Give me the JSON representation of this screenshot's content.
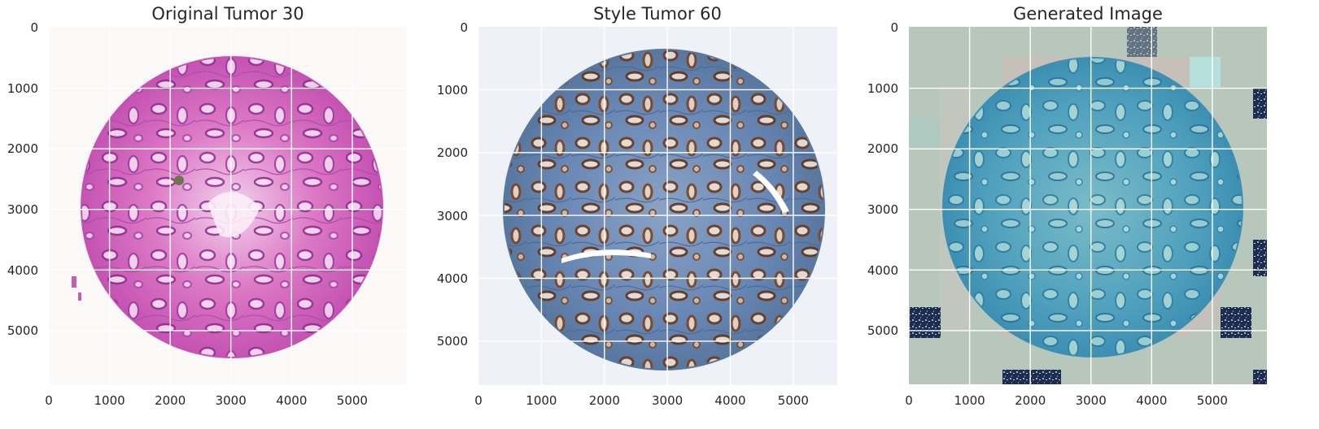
{
  "chart_data": [
    {
      "type": "image",
      "title": "Original Tumor 30",
      "xlim": [
        0,
        5900
      ],
      "ylim": [
        5900,
        0
      ],
      "xticks": [
        "0",
        "1000",
        "2000",
        "3000",
        "4000",
        "5000"
      ],
      "yticks": [
        "0",
        "1000",
        "2000",
        "3000",
        "4000",
        "5000"
      ],
      "grid": true,
      "image_style": "H&E stain, pink/purple tissue core on near-white background",
      "colors": {
        "background": "#fbf8f8",
        "tissue": "#e070c0",
        "tissue_dark": "#9a3a9c",
        "lumen": "#f7e8f4"
      }
    },
    {
      "type": "image",
      "title": "Style Tumor 60",
      "xlim": [
        0,
        5700
      ],
      "ylim": [
        5700,
        0
      ],
      "xticks": [
        "0",
        "1000",
        "2000",
        "3000",
        "4000",
        "5000"
      ],
      "yticks": [
        "0",
        "1000",
        "2000",
        "3000",
        "4000",
        "5000"
      ],
      "grid": true,
      "image_style": "IHC stain, blue tissue core with brown glands on light background",
      "colors": {
        "background": "#eef1f6",
        "tissue": "#6f8fb8",
        "tissue_dark": "#3d5f91",
        "gland": "#7a4524",
        "lumen": "#efe6df"
      }
    },
    {
      "type": "image",
      "title": "Generated Image",
      "xlim": [
        0,
        5900
      ],
      "ylim": [
        5900,
        0
      ],
      "xticks": [
        "0",
        "1000",
        "2000",
        "3000",
        "4000",
        "5000"
      ],
      "yticks": [
        "0",
        "1000",
        "2000",
        "3000",
        "4000",
        "5000"
      ],
      "grid": true,
      "image_style": "Style-transferred result, teal tissue core on tiled grey-green background",
      "colors": {
        "background": "#b8c7bb",
        "tile_pink": "#cdbdb6",
        "tissue": "#4fa0bd",
        "tissue_dark": "#2f7ea3",
        "lumen": "#a9d9d8",
        "noise_tile": "#1a2a4a"
      }
    }
  ]
}
